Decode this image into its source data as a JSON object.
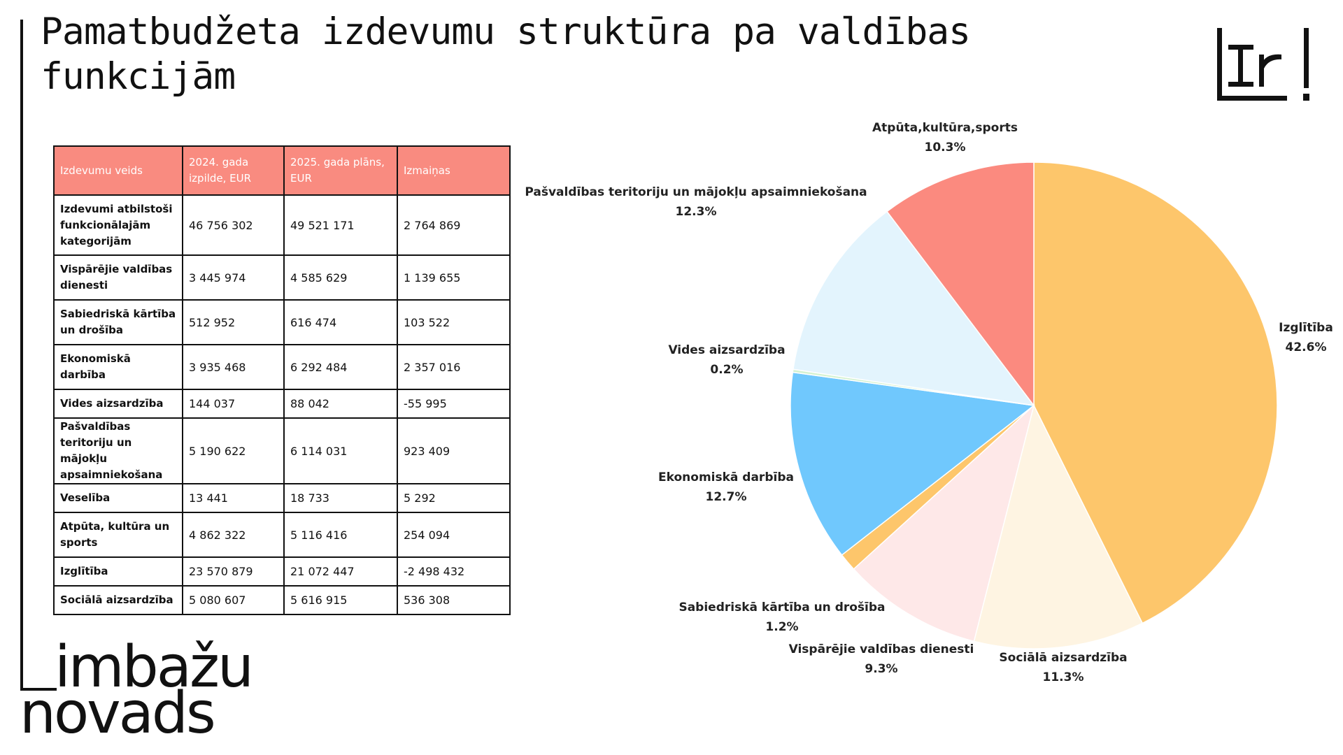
{
  "title": "Pamatbudžeta izdevumu struktūra pa valdības funkcijām",
  "brand": {
    "line1": "imbažu",
    "line2": "novads",
    "logo": "Ir!"
  },
  "table": {
    "headers": [
      "Izdevumu veids",
      "2024. gada izpilde, EUR",
      "2025. gada plāns, EUR",
      "Izmaiņas"
    ],
    "rows": [
      [
        "Izdevumi atbilstoši funkcionālajām kategorijām",
        "46 756 302",
        "49 521 171",
        "2 764 869"
      ],
      [
        "Vispārējie valdības dienesti",
        "3 445  974",
        "4 585  629",
        "1 139  655"
      ],
      [
        "Sabiedriskā kārtība un drošība",
        "512 952",
        "616 474",
        "103 522"
      ],
      [
        "Ekonomiskā darbība",
        "3 935 468",
        "6 292 484",
        "2 357 016"
      ],
      [
        "Vides aizsardzība",
        "144 037",
        "88 042",
        "-55 995"
      ],
      [
        "Pašvaldības teritoriju un mājokļu apsaimniekošana",
        "5 190 622",
        "6 114 031",
        "923 409"
      ],
      [
        "Veselība",
        "13 441",
        "18 733",
        "5 292"
      ],
      [
        "Atpūta, kultūra un sports",
        "4 862 322",
        "5 116 416",
        "254 094"
      ],
      [
        "Izglītība",
        "23 570 879",
        "21 072 447",
        "-2 498 432"
      ],
      [
        "Sociālā aizsardzība",
        "5 080 607",
        "5 616 915",
        "536 308"
      ]
    ]
  },
  "chart_data": {
    "type": "pie",
    "slices": [
      {
        "label": "Izglītība",
        "pct_label": "42.6%",
        "value": 42.6,
        "color": "#fdc66b"
      },
      {
        "label": "Sociālā aizsardzība",
        "pct_label": "11.3%",
        "value": 11.3,
        "color": "#fef4e2"
      },
      {
        "label": "Vispārējie valdības dienesti",
        "pct_label": "9.3%",
        "value": 9.3,
        "color": "#fee8e8"
      },
      {
        "label": "Sabiedriskā kārtība un drošība",
        "pct_label": "1.2%",
        "value": 1.2,
        "color": "#fdc66b"
      },
      {
        "label": "Ekonomiskā darbība",
        "pct_label": "12.7%",
        "value": 12.7,
        "color": "#70c8fd"
      },
      {
        "label": "Vides aizsardzība",
        "pct_label": "0.2%",
        "value": 0.2,
        "color": "#d4f2d2"
      },
      {
        "label": "Pašvaldības teritoriju un mājokļu apsaimniekošana",
        "pct_label": "12.3%",
        "value": 12.3,
        "color": "#e3f4fd"
      },
      {
        "label": "Atpūta,kultūra,sports",
        "pct_label": "10.3%",
        "value": 10.3,
        "color": "#fb8a7f"
      }
    ]
  }
}
